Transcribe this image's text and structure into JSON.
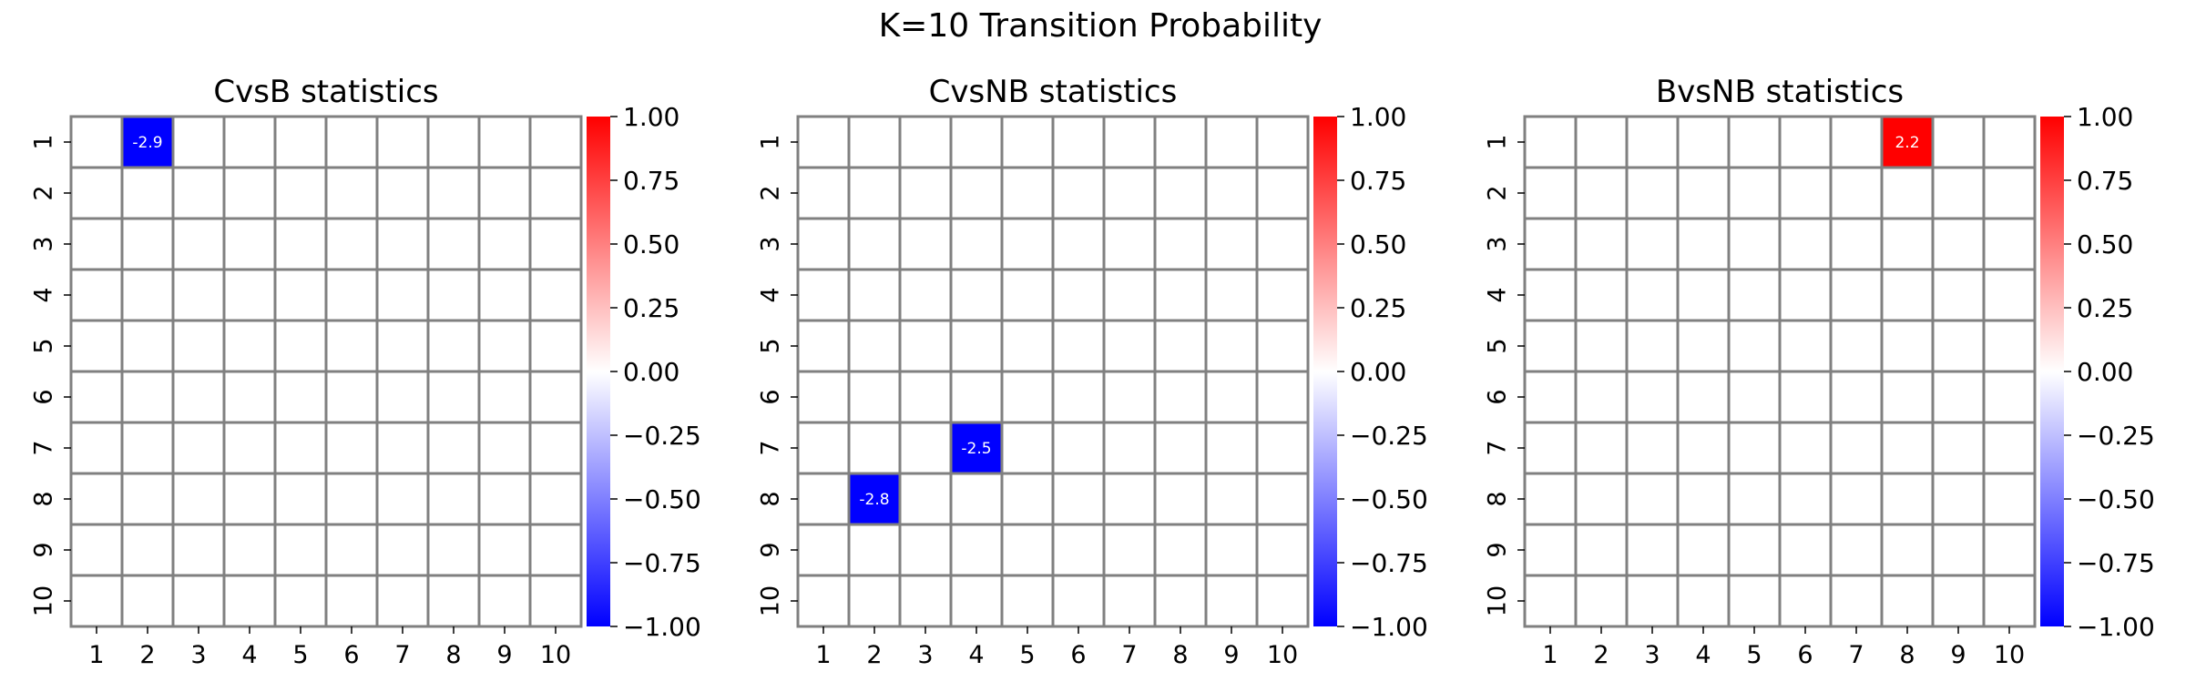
{
  "figure_title": "K=10 Transition Probability",
  "chart_data": [
    {
      "type": "heatmap",
      "title": "CvsB statistics",
      "xlabel": "",
      "ylabel": "",
      "x_tick_labels": [
        "1",
        "2",
        "3",
        "4",
        "5",
        "6",
        "7",
        "8",
        "9",
        "10"
      ],
      "y_tick_labels": [
        "1",
        "2",
        "3",
        "4",
        "5",
        "6",
        "7",
        "8",
        "9",
        "10"
      ],
      "cells": [
        {
          "row": 1,
          "col": 2,
          "value": -2.9,
          "label": "-2.9"
        }
      ],
      "colorbar": {
        "range": [
          -1.0,
          1.0
        ],
        "tick_labels": [
          "1.00",
          "0.75",
          "0.50",
          "0.25",
          "0.00",
          "−0.25",
          "−0.50",
          "−0.75",
          "−1.00"
        ]
      },
      "cmap": "bwr",
      "colors": {
        "positive": "#ff0000",
        "zero": "#ffffff",
        "negative": "#0000ff",
        "grid": "#808080"
      }
    },
    {
      "type": "heatmap",
      "title": "CvsNB statistics",
      "xlabel": "",
      "ylabel": "",
      "x_tick_labels": [
        "1",
        "2",
        "3",
        "4",
        "5",
        "6",
        "7",
        "8",
        "9",
        "10"
      ],
      "y_tick_labels": [
        "1",
        "2",
        "3",
        "4",
        "5",
        "6",
        "7",
        "8",
        "9",
        "10"
      ],
      "cells": [
        {
          "row": 7,
          "col": 4,
          "value": -2.5,
          "label": "-2.5"
        },
        {
          "row": 8,
          "col": 2,
          "value": -2.8,
          "label": "-2.8"
        }
      ],
      "colorbar": {
        "range": [
          -1.0,
          1.0
        ],
        "tick_labels": [
          "1.00",
          "0.75",
          "0.50",
          "0.25",
          "0.00",
          "−0.25",
          "−0.50",
          "−0.75",
          "−1.00"
        ]
      },
      "cmap": "bwr",
      "colors": {
        "positive": "#ff0000",
        "zero": "#ffffff",
        "negative": "#0000ff",
        "grid": "#808080"
      }
    },
    {
      "type": "heatmap",
      "title": "BvsNB statistics",
      "xlabel": "",
      "ylabel": "",
      "x_tick_labels": [
        "1",
        "2",
        "3",
        "4",
        "5",
        "6",
        "7",
        "8",
        "9",
        "10"
      ],
      "y_tick_labels": [
        "1",
        "2",
        "3",
        "4",
        "5",
        "6",
        "7",
        "8",
        "9",
        "10"
      ],
      "cells": [
        {
          "row": 1,
          "col": 8,
          "value": 2.2,
          "label": "2.2"
        }
      ],
      "colorbar": {
        "range": [
          -1.0,
          1.0
        ],
        "tick_labels": [
          "1.00",
          "0.75",
          "0.50",
          "0.25",
          "0.00",
          "−0.25",
          "−0.50",
          "−0.75",
          "−1.00"
        ]
      },
      "cmap": "bwr",
      "colors": {
        "positive": "#ff0000",
        "zero": "#ffffff",
        "negative": "#0000ff",
        "grid": "#808080"
      }
    }
  ]
}
